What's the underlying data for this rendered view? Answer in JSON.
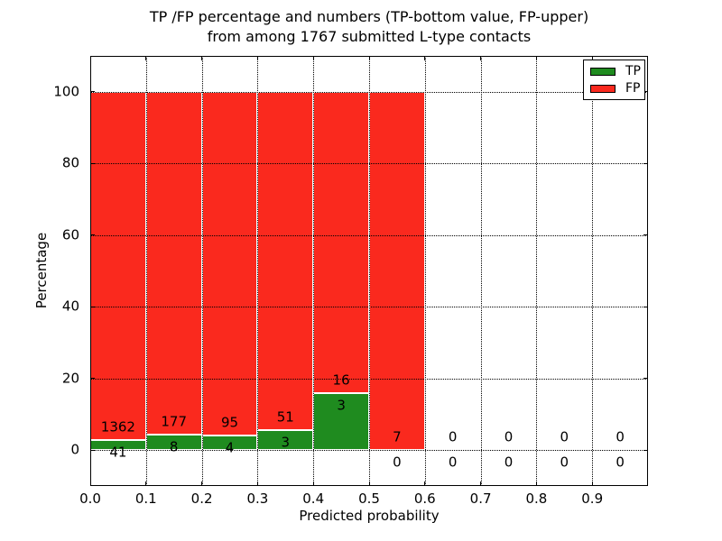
{
  "title": {
    "line1": "TP /FP percentage and numbers (TP-bottom value, FP-upper)",
    "line2": "from among 1767 submitted L-type contacts"
  },
  "axes": {
    "x_label": "Predicted probability",
    "y_label": "Percentage",
    "x_ticks": [
      "0.0",
      "0.1",
      "0.2",
      "0.3",
      "0.4",
      "0.5",
      "0.6",
      "0.7",
      "0.8",
      "0.9"
    ],
    "y_ticks": [
      "0",
      "20",
      "40",
      "60",
      "80",
      "100"
    ],
    "x_range": [
      0.0,
      1.0
    ],
    "y_range": [
      -10,
      110
    ],
    "grid": "dotted"
  },
  "legend": {
    "items": [
      {
        "label": "TP",
        "color": "#1f8b1f"
      },
      {
        "label": "FP",
        "color": "#fa291e"
      }
    ]
  },
  "chart_data": {
    "type": "bar",
    "stacked": true,
    "normalized_to_percent": true,
    "title": "TP /FP percentage and numbers (TP-bottom value, FP-upper) from among 1767 submitted L-type contacts",
    "xlabel": "Predicted probability",
    "ylabel": "Percentage",
    "xlim": [
      0.0,
      1.0
    ],
    "ylim": [
      -10,
      110
    ],
    "bin_width": 0.1,
    "total_contacts": 1767,
    "colors": {
      "tp": "#1f8b1f",
      "fp": "#fa291e",
      "bar_edge": "#ffffff"
    },
    "series_note": "Each bin stacked to 100%: TP% bottom (green), FP% top (red); labels show raw counts (FP above TP)",
    "bins": [
      {
        "x0": 0.0,
        "x1": 0.1,
        "tp_count": 41,
        "fp_count": 1362
      },
      {
        "x0": 0.1,
        "x1": 0.2,
        "tp_count": 8,
        "fp_count": 177
      },
      {
        "x0": 0.2,
        "x1": 0.3,
        "tp_count": 4,
        "fp_count": 95
      },
      {
        "x0": 0.3,
        "x1": 0.4,
        "tp_count": 3,
        "fp_count": 51
      },
      {
        "x0": 0.4,
        "x1": 0.5,
        "tp_count": 3,
        "fp_count": 16
      },
      {
        "x0": 0.5,
        "x1": 0.6,
        "tp_count": 0,
        "fp_count": 7
      },
      {
        "x0": 0.6,
        "x1": 0.7,
        "tp_count": 0,
        "fp_count": 0
      },
      {
        "x0": 0.7,
        "x1": 0.8,
        "tp_count": 0,
        "fp_count": 0
      },
      {
        "x0": 0.8,
        "x1": 0.9,
        "tp_count": 0,
        "fp_count": 0
      },
      {
        "x0": 0.9,
        "x1": 1.0,
        "tp_count": 0,
        "fp_count": 0
      }
    ]
  }
}
